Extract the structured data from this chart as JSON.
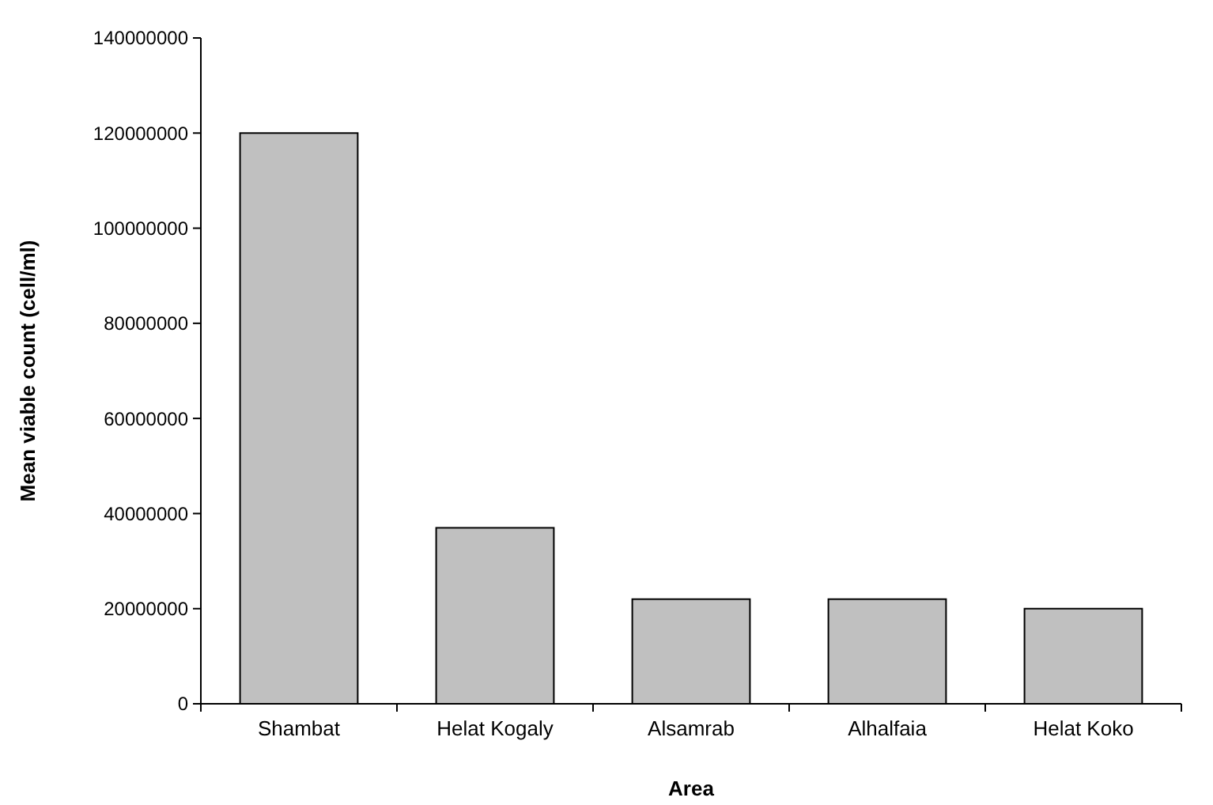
{
  "chart_data": {
    "type": "bar",
    "xlabel": "Area",
    "ylabel": "Mean viable count (cell/ml)",
    "categories": [
      "Shambat",
      "Helat Kogaly",
      "Alsamrab",
      "Alhalfaia",
      "Helat Koko"
    ],
    "values": [
      120000000,
      37000000,
      22000000,
      22000000,
      20000000
    ],
    "color": "#c0c0c0",
    "ylim": [
      0,
      140000000
    ],
    "yticks": [
      0,
      20000000,
      40000000,
      60000000,
      80000000,
      100000000,
      120000000,
      140000000
    ],
    "grid": false
  }
}
